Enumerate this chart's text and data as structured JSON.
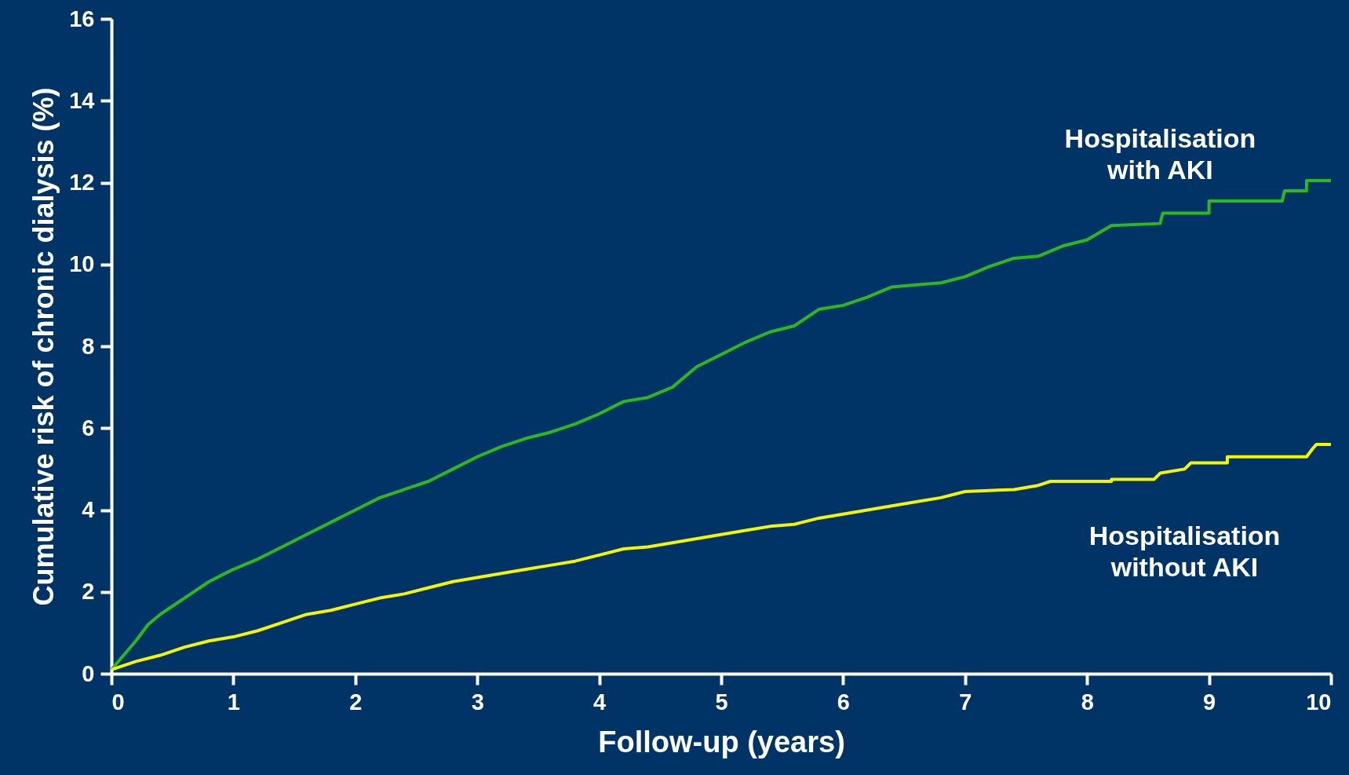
{
  "chart_data": {
    "type": "line",
    "xlabel": "Follow-up (years)",
    "ylabel": "Cumulative risk of chronic dialysis (%)",
    "xlim": [
      0,
      10
    ],
    "ylim": [
      0,
      16
    ],
    "xticks": [
      0,
      1,
      2,
      3,
      4,
      5,
      6,
      7,
      8,
      9,
      10
    ],
    "yticks": [
      0,
      2,
      4,
      6,
      8,
      10,
      12,
      14,
      16
    ],
    "grid": false,
    "marker": "none",
    "line_style": "solid",
    "series": [
      {
        "name": "Hospitalisation\nwith AKI",
        "color": "#2db81e",
        "x": [
          0,
          0.1,
          0.2,
          0.3,
          0.4,
          0.5,
          0.6,
          0.7,
          0.8,
          0.9,
          1.0,
          1.2,
          1.4,
          1.6,
          1.8,
          2.0,
          2.2,
          2.4,
          2.6,
          2.8,
          3.0,
          3.2,
          3.4,
          3.6,
          3.8,
          4.0,
          4.2,
          4.4,
          4.6,
          4.8,
          5.0,
          5.2,
          5.4,
          5.6,
          5.8,
          6.0,
          6.2,
          6.4,
          6.6,
          6.8,
          7.0,
          7.2,
          7.4,
          7.6,
          7.8,
          8.0,
          8.2,
          8.6,
          8.62,
          9.0,
          9.0,
          9.6,
          9.62,
          9.8,
          9.8,
          10.0
        ],
        "values": [
          0.1,
          0.45,
          0.8,
          1.2,
          1.45,
          1.65,
          1.85,
          2.05,
          2.25,
          2.4,
          2.55,
          2.8,
          3.1,
          3.4,
          3.7,
          4.0,
          4.3,
          4.5,
          4.7,
          5.0,
          5.3,
          5.55,
          5.75,
          5.9,
          6.1,
          6.35,
          6.65,
          6.75,
          7.0,
          7.5,
          7.8,
          8.1,
          8.35,
          8.5,
          8.9,
          9.0,
          9.2,
          9.45,
          9.5,
          9.55,
          9.7,
          9.95,
          10.15,
          10.2,
          10.45,
          10.6,
          10.95,
          11.0,
          11.25,
          11.25,
          11.55,
          11.55,
          11.8,
          11.8,
          12.05,
          12.05
        ]
      },
      {
        "name": "Hospitalisation\nwithout AKI",
        "color": "#f5f500",
        "x": [
          0,
          0.2,
          0.4,
          0.6,
          0.8,
          1.0,
          1.2,
          1.4,
          1.6,
          1.8,
          2.0,
          2.2,
          2.4,
          2.6,
          2.8,
          3.0,
          3.2,
          3.4,
          3.6,
          3.8,
          4.0,
          4.2,
          4.4,
          4.6,
          4.8,
          5.0,
          5.2,
          5.4,
          5.6,
          5.8,
          6.0,
          6.2,
          6.4,
          6.6,
          6.8,
          7.0,
          7.4,
          7.6,
          7.7,
          8.2,
          8.2,
          8.55,
          8.6,
          8.8,
          8.85,
          9.15,
          9.15,
          9.8,
          9.85,
          9.88,
          10.0
        ],
        "values": [
          0.1,
          0.3,
          0.45,
          0.65,
          0.8,
          0.9,
          1.05,
          1.25,
          1.45,
          1.55,
          1.7,
          1.85,
          1.95,
          2.1,
          2.25,
          2.35,
          2.45,
          2.55,
          2.65,
          2.75,
          2.9,
          3.05,
          3.1,
          3.2,
          3.3,
          3.4,
          3.5,
          3.6,
          3.65,
          3.8,
          3.9,
          4.0,
          4.1,
          4.2,
          4.3,
          4.45,
          4.5,
          4.6,
          4.7,
          4.7,
          4.75,
          4.75,
          4.9,
          5.0,
          5.15,
          5.15,
          5.3,
          5.3,
          5.5,
          5.6,
          5.6
        ]
      }
    ]
  }
}
